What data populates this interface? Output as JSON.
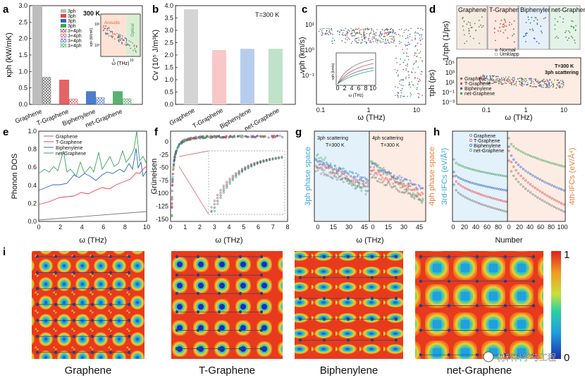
{
  "colors": {
    "graphene": "#777777",
    "tgraphene": "#e0474c",
    "biphenylene": "#2d64c8",
    "netgraphene": "#3ea35a"
  },
  "chart_data": [
    {
      "panel": "a",
      "type": "bar",
      "title": "300 K",
      "categories": [
        "Graphene",
        "T-Graphene",
        "Biphenylene",
        "net-Graphene"
      ],
      "series": [
        {
          "name": "3ph",
          "values": [
            3.0,
            0.75,
            0.4,
            0.4
          ]
        },
        {
          "name": "3+4ph",
          "values": [
            0.82,
            0.16,
            0.2,
            0.17
          ]
        }
      ],
      "ylabel": "κph (kW/mK)",
      "ylim": [
        0,
        3.0
      ],
      "yticks": [
        "0.0",
        "0.5",
        "1.0",
        "1.5",
        "2.0",
        "2.5",
        "3.0"
      ],
      "legend": [
        "3ph",
        "3ph",
        "3ph",
        "3ph",
        "3+4ph",
        "3+4ph",
        "3+4ph",
        "3+4ph"
      ],
      "inset": {
        "xlabel": "ω (THz)",
        "ylabel": "κph (W/mK)",
        "ann1": "Acoustic",
        "ann2": "Optical",
        "xticks": [
          "1",
          "10"
        ],
        "yticks": [
          "10²",
          "10⁰"
        ]
      }
    },
    {
      "panel": "b",
      "type": "bar",
      "title": "T=300 K",
      "categories": [
        "Graphene",
        "T-Graphene",
        "Biphenylene",
        "net-Graphene"
      ],
      "values": [
        3.85,
        2.2,
        2.25,
        2.25
      ],
      "ylabel": "Cv (10⁵ J/m³K)",
      "ylim": [
        0,
        4.0
      ],
      "yticks": [
        "0.0",
        "0.5",
        "1.0",
        "1.5",
        "2.0",
        "2.5",
        "3.0",
        "3.5",
        "4.0"
      ]
    },
    {
      "panel": "c",
      "type": "scatter",
      "xlabel": "ω (THz)",
      "ylabel": "vph (km/s)",
      "xticks": [
        "0.1",
        "1",
        "10"
      ],
      "yticks": [
        "10¹",
        "10⁰",
        "10⁻¹"
      ],
      "inset": {
        "xlabel": "ω (THz)",
        "ylabel": "vph (km/s)",
        "xticks": [
          "0",
          "2",
          "4",
          "6",
          "8",
          "10"
        ]
      }
    },
    {
      "panel": "d",
      "type": "scatter",
      "ylabel_top": "1/τph (1/ps)",
      "ylabel": "τph (ps)",
      "xlabel": "ω (THz)",
      "annotation": "T=300 K",
      "annotation2": "3ph scattering",
      "xticks": [
        "0.1",
        "1",
        "10"
      ],
      "yticks": [
        "10⁵",
        "10³",
        "10¹",
        "10⁻¹",
        "10⁻³"
      ],
      "tiles": [
        "Graphene",
        "T-Graphene",
        "Biphenylene",
        "net-Graphene"
      ],
      "tile_legend": [
        "Normal",
        "Umklapp"
      ],
      "legend": [
        "Graphene",
        "T-Graphene",
        "Biphenylene",
        "net-Graphene"
      ]
    },
    {
      "panel": "e",
      "type": "line",
      "xlabel": "ω (THz)",
      "ylabel": "Phonon DOS",
      "xlim": [
        0,
        10
      ],
      "ylim": [
        0,
        1.0
      ],
      "xticks": [
        "0",
        "2",
        "4",
        "6",
        "8",
        "10"
      ],
      "yticks": [
        "0.0",
        "0.2",
        "0.4",
        "0.6",
        "0.8",
        "1.0"
      ],
      "legend": [
        "Graphene",
        "T-Graphene",
        "Biphenylene",
        "net-Graphene"
      ]
    },
    {
      "panel": "f",
      "type": "scatter",
      "xlabel": "ω (THz)",
      "ylabel": "Grüneisen",
      "xlim": [
        0,
        8
      ],
      "ylim": [
        -150,
        0
      ],
      "xticks": [
        "0",
        "1",
        "2",
        "3",
        "4",
        "5",
        "6",
        "7",
        "8"
      ],
      "yticks": [
        "0",
        "-25",
        "-50",
        "-75",
        "-100",
        "-125",
        "-150"
      ]
    },
    {
      "panel": "g",
      "type": "scatter",
      "xlabel": "ω (THz)",
      "ylabel": "3ph phase space",
      "ylabel2": "4ph phase space",
      "ann_left": "3ph scattering",
      "ann_left2": "T=300 K",
      "ann_right": "4ph scattering",
      "ann_right2": "T=300 K",
      "xticks": [
        "0",
        "15",
        "30",
        "45",
        "0",
        "15",
        "30",
        "45"
      ]
    },
    {
      "panel": "h",
      "type": "scatter",
      "xlabel": "Number",
      "ylabel": "3rd-IFCs (eV/Å³)",
      "ylabel2": "4th-IFCs (eV/Å⁴)",
      "xticks": [
        "0",
        "20",
        "40",
        "60",
        "80",
        "0",
        "20",
        "40",
        "60",
        "80",
        "100"
      ],
      "legend": [
        "Graphene",
        "T-Graphene",
        "Biphenylene",
        "net-Graphene"
      ]
    }
  ],
  "panel_labels": [
    "a",
    "b",
    "c",
    "d",
    "e",
    "f",
    "g",
    "h",
    "i"
  ],
  "maps": {
    "captions": [
      "Graphene",
      "T-Graphene",
      "Biphenylene",
      "net-Graphene"
    ],
    "colorbar_top": "1",
    "colorbar_bottom": "0"
  },
  "watermark": "材料科学与工程"
}
